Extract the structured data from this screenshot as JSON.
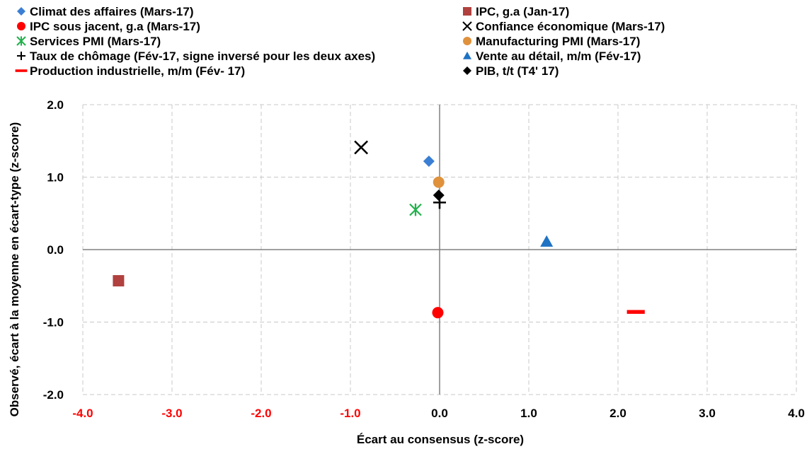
{
  "chart_data": {
    "type": "scatter",
    "xlabel": "Écart au consensus (z-score)",
    "ylabel": "Observé, écart à la moyenne en écart-type  (z-score)",
    "xlim": [
      -4,
      4
    ],
    "ylim": [
      -2,
      2
    ],
    "x_ticks": [
      "-4.0",
      "-3.0",
      "-2.0",
      "-1.0",
      "0.0",
      "1.0",
      "2.0",
      "3.0",
      "4.0"
    ],
    "y_ticks": [
      "2.0",
      "1.0",
      "0.0",
      "-1.0",
      "-2.0"
    ],
    "x_tick_colors": {
      "negative": "#ff0000",
      "nonnegative": "#000000"
    },
    "grid": "vertical-and-horizontal-dashed",
    "legend_placement": "top",
    "series": [
      {
        "name": "Climat des affaires (Mars-17)",
        "marker": "diamond",
        "color": "#3b7fd4",
        "x": -0.12,
        "y": 1.22
      },
      {
        "name": "IPC, g.a (Jan-17)",
        "marker": "square",
        "color": "#b0413e",
        "x": -3.6,
        "y": -0.43
      },
      {
        "name": "IPC sous jacent, g.a (Mars-17)",
        "marker": "circle",
        "color": "#ff0000",
        "x": -0.02,
        "y": -0.87
      },
      {
        "name": "Confiance économique  (Mars-17)",
        "marker": "x",
        "color": "#000000",
        "x": -0.88,
        "y": 1.41
      },
      {
        "name": "Services PMI (Mars-17)",
        "marker": "asterisk",
        "color": "#22b14c",
        "x": -0.27,
        "y": 0.55
      },
      {
        "name": " Manufacturing PMI (Mars-17)",
        "marker": "circle",
        "color": "#e0913c",
        "x": -0.01,
        "y": 0.93
      },
      {
        "name": "Taux de chômage (Fév-17, signe inversé pour les deux axes)",
        "marker": "plus",
        "color": "#000000",
        "x": 0.0,
        "y": 0.65
      },
      {
        "name": "Vente au détail, m/m  (Fév-17)",
        "marker": "triangle",
        "color": "#1f72c4",
        "x": 1.2,
        "y": 0.11
      },
      {
        "name": "Production industrielle, m/m (Fév- 17)",
        "marker": "dash",
        "color": "#ff0000",
        "x": 2.2,
        "y": -0.86
      },
      {
        "name": "PIB, t/t (T4' 17)",
        "marker": "diamond",
        "color": "#000000",
        "x": -0.01,
        "y": 0.75
      }
    ]
  }
}
